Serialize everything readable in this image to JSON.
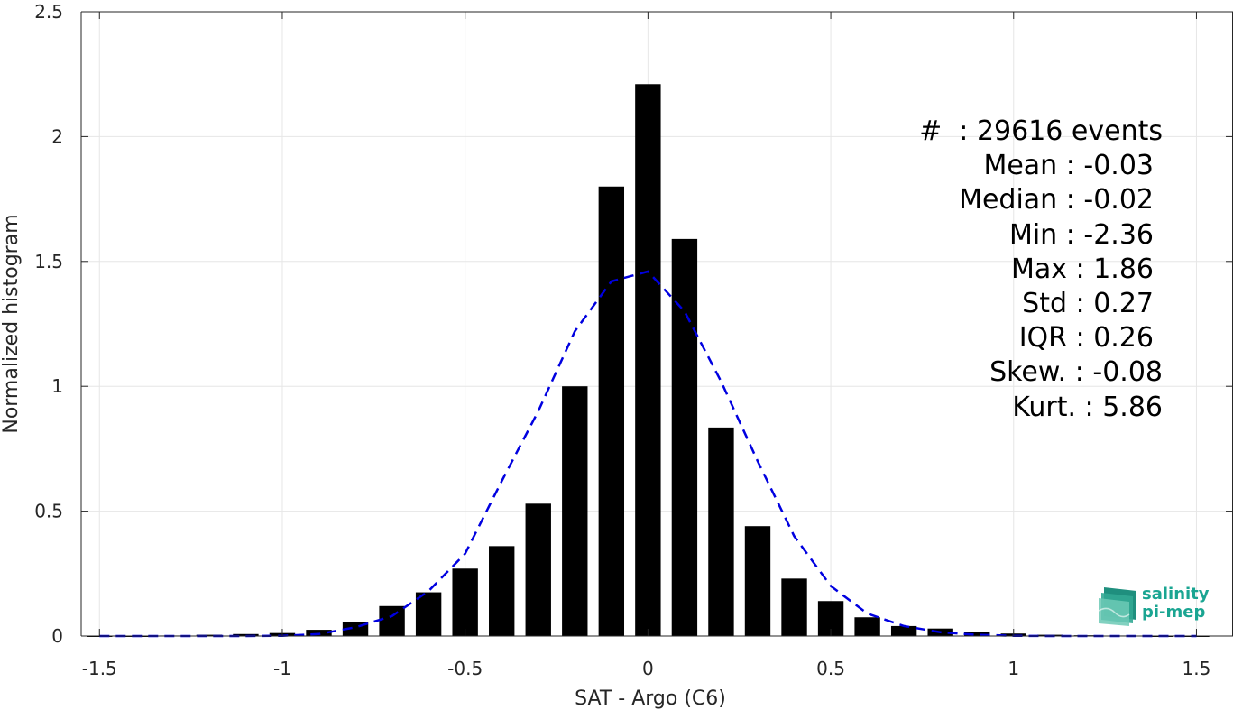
{
  "chart_data": {
    "type": "bar",
    "xlabel": "SAT - Argo (C6)",
    "ylabel": "Normalized histogram",
    "xlim": [
      -1.55,
      1.6
    ],
    "ylim": [
      0,
      2.5
    ],
    "xticks": [
      "-1.5",
      "-1",
      "-0.5",
      "0",
      "0.5",
      "1",
      "1.5"
    ],
    "yticks": [
      "0",
      "0.5",
      "1",
      "1.5",
      "2",
      "2.5"
    ],
    "grid": true,
    "bar_color": "#000000",
    "fit_color": "#0000e0",
    "x": [
      -1.5,
      -1.4,
      -1.3,
      -1.2,
      -1.1,
      -1.0,
      -0.9,
      -0.8,
      -0.7,
      -0.6,
      -0.5,
      -0.4,
      -0.3,
      -0.2,
      -0.1,
      0.0,
      0.1,
      0.2,
      0.3,
      0.4,
      0.5,
      0.6,
      0.7,
      0.8,
      0.9,
      1.0,
      1.1,
      1.2,
      1.3,
      1.4,
      1.5
    ],
    "series": [
      {
        "type": "bar",
        "values": [
          0.0,
          0.0,
          0.002,
          0.005,
          0.008,
          0.012,
          0.025,
          0.055,
          0.12,
          0.175,
          0.27,
          0.36,
          0.53,
          1.0,
          1.8,
          2.21,
          1.59,
          0.835,
          0.44,
          0.23,
          0.14,
          0.075,
          0.04,
          0.03,
          0.015,
          0.01,
          0.005,
          0.003,
          0.002,
          0.0,
          0.0
        ]
      },
      {
        "type": "line",
        "style": "dashed",
        "x": [
          -1.5,
          -1.4,
          -1.3,
          -1.2,
          -1.1,
          -1.0,
          -0.9,
          -0.8,
          -0.7,
          -0.6,
          -0.5,
          -0.4,
          -0.3,
          -0.2,
          -0.1,
          0.0,
          0.1,
          0.2,
          0.3,
          0.4,
          0.5,
          0.6,
          0.7,
          0.8,
          0.9,
          1.0,
          1.1,
          1.2,
          1.3,
          1.4,
          1.5
        ],
        "values": [
          0.0,
          0.0,
          0.0,
          0.0,
          0.0,
          0.001,
          0.008,
          0.035,
          0.08,
          0.18,
          0.33,
          0.62,
          0.9,
          1.22,
          1.42,
          1.46,
          1.3,
          1.02,
          0.7,
          0.4,
          0.2,
          0.09,
          0.04,
          0.015,
          0.005,
          0.001,
          0.0,
          0.0,
          0.0,
          0.0,
          0.0
        ]
      }
    ]
  },
  "stats": {
    "events": "#  : 29616 events",
    "mean": "Mean : -0.03",
    "median": "Median : -0.02",
    "min": "Min : -2.36",
    "max": "Max : 1.86",
    "std": "Std : 0.27",
    "iqr": "IQR : 0.26",
    "skew": "Skew. : -0.08",
    "kurt": "Kurt. : 5.86"
  },
  "logo": {
    "line1": "salinity",
    "line2": "pi-mep",
    "color": "#1aa592"
  }
}
